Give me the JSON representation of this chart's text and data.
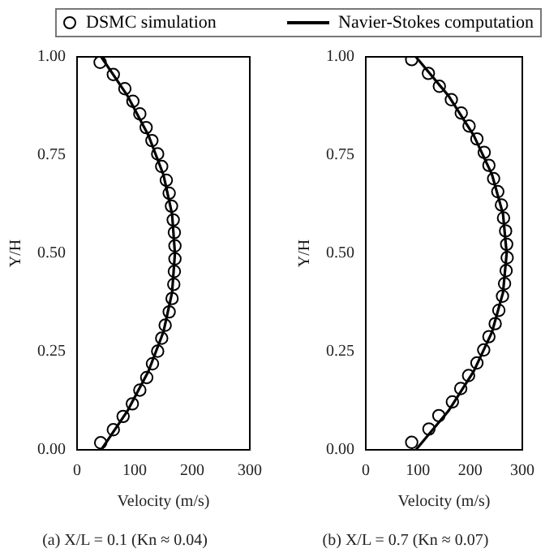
{
  "chart_data": [
    {
      "type": "scatter",
      "title": "(a) X/L = 0.1 (Kn ≈ 0.04)",
      "xlabel": "Velocity (m/s)",
      "ylabel": "Y/H",
      "legend": "top",
      "xlim": [
        0,
        300
      ],
      "xticks": [
        0,
        100,
        200,
        300
      ],
      "ylim": [
        0,
        1
      ],
      "yticks": [
        {
          "value": 0,
          "label": "0.00"
        },
        {
          "value": 0.25,
          "label": "0.25"
        },
        {
          "value": 0.5,
          "label": "0.50"
        },
        {
          "value": 0.75,
          "label": "0.75"
        },
        {
          "value": 1,
          "label": "1.00"
        }
      ],
      "series": [
        {
          "name": "DSMC simulation",
          "type": "scatter",
          "marker": "circle",
          "color": "#000000",
          "x": [
            40,
            63,
            83,
            97,
            109,
            120,
            130,
            140,
            147,
            155,
            160,
            164,
            167,
            169,
            170,
            170,
            169,
            168,
            165,
            160,
            153,
            147,
            140,
            131,
            121,
            109,
            96,
            80,
            63,
            41
          ],
          "values": [
            0.986,
            0.955,
            0.919,
            0.887,
            0.855,
            0.82,
            0.787,
            0.753,
            0.721,
            0.686,
            0.653,
            0.62,
            0.585,
            0.553,
            0.519,
            0.486,
            0.454,
            0.421,
            0.385,
            0.351,
            0.317,
            0.284,
            0.251,
            0.219,
            0.184,
            0.152,
            0.117,
            0.085,
            0.051,
            0.018
          ]
        },
        {
          "name": "Navier-Stokes computation",
          "type": "line",
          "marker": "none",
          "line_style": "solid",
          "color": "#000000",
          "x": [
            42,
            88,
            124,
            150,
            165,
            170,
            165,
            150,
            124,
            88,
            42
          ],
          "values": [
            0,
            0.1,
            0.2,
            0.3,
            0.4,
            0.5,
            0.6,
            0.7,
            0.8,
            0.9,
            1
          ]
        }
      ]
    },
    {
      "type": "scatter",
      "title": "(b) X/L = 0.7 (Kn ≈ 0.07)",
      "xlabel": "Velocity (m/s)",
      "ylabel": "Y/H",
      "xlim": [
        0,
        300
      ],
      "xticks": [
        0,
        100,
        200,
        300
      ],
      "ylim": [
        0,
        1
      ],
      "yticks": [
        {
          "value": 0,
          "label": "0.00"
        },
        {
          "value": 0.25,
          "label": "0.25"
        },
        {
          "value": 0.5,
          "label": "0.50"
        },
        {
          "value": 0.75,
          "label": "0.75"
        },
        {
          "value": 1,
          "label": "1.00"
        }
      ],
      "series": [
        {
          "type": "scatter",
          "marker": "circle",
          "color": "#000000",
          "x": [
            88,
            120,
            141,
            164,
            183,
            198,
            213,
            227,
            236,
            245,
            253,
            260,
            264,
            268,
            270,
            271,
            269,
            266,
            262,
            255,
            248,
            236,
            226,
            213,
            197,
            182,
            166,
            140,
            121,
            88
          ],
          "values": [
            0.993,
            0.958,
            0.925,
            0.891,
            0.857,
            0.824,
            0.791,
            0.757,
            0.724,
            0.69,
            0.657,
            0.623,
            0.59,
            0.557,
            0.523,
            0.489,
            0.456,
            0.423,
            0.391,
            0.355,
            0.321,
            0.288,
            0.254,
            0.221,
            0.189,
            0.156,
            0.122,
            0.087,
            0.053,
            0.019
          ]
        },
        {
          "type": "line",
          "marker": "none",
          "line_style": "solid",
          "color": "#000000",
          "x": [
            96,
            159,
            207,
            242,
            263,
            270,
            263,
            242,
            207,
            159,
            96
          ],
          "values": [
            0,
            0.1,
            0.2,
            0.3,
            0.4,
            0.5,
            0.6,
            0.7,
            0.8,
            0.9,
            1
          ]
        }
      ]
    }
  ]
}
